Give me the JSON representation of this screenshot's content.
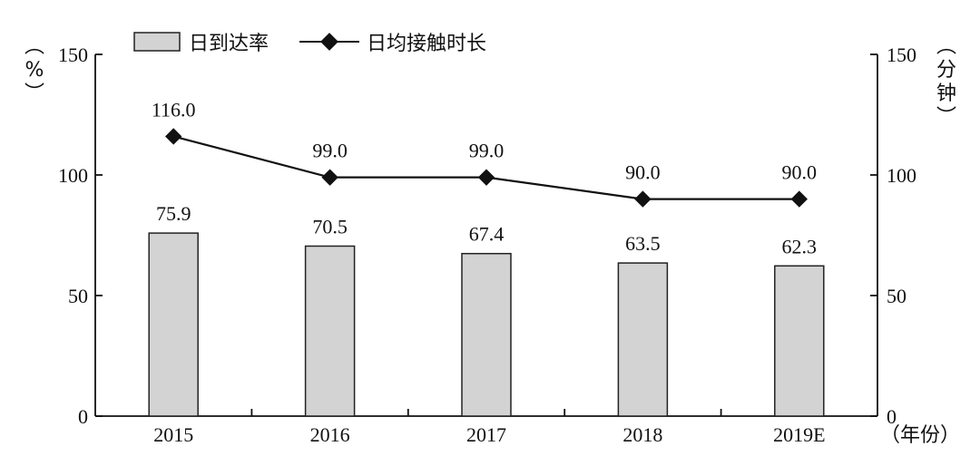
{
  "chart_data": {
    "type": "bar",
    "categories": [
      "2015",
      "2016",
      "2017",
      "2018",
      "2019E"
    ],
    "series": [
      {
        "name": "日到达率",
        "type": "bar",
        "axis": "left",
        "values": [
          75.9,
          70.5,
          67.4,
          63.5,
          62.3
        ],
        "labels": [
          "75.9",
          "70.5",
          "67.4",
          "63.5",
          "62.3"
        ],
        "color": "#d3d3d3"
      },
      {
        "name": "日均接触时长",
        "type": "line",
        "axis": "right",
        "values": [
          116.0,
          99.0,
          99.0,
          90.0,
          90.0
        ],
        "labels": [
          "116.0",
          "99.0",
          "99.0",
          "90.0",
          "90.0"
        ],
        "color": "#111111"
      }
    ],
    "y_left": {
      "unit": "（%）",
      "ylim": [
        0,
        150
      ],
      "ticks": [
        "0",
        "50",
        "100",
        "150"
      ]
    },
    "y_right": {
      "unit": "（分钟）",
      "ylim": [
        0,
        150
      ],
      "ticks": [
        "0",
        "50",
        "100",
        "150"
      ]
    },
    "x_unit": "（年份）",
    "legend": {
      "position": "top-left"
    },
    "grid": false
  }
}
